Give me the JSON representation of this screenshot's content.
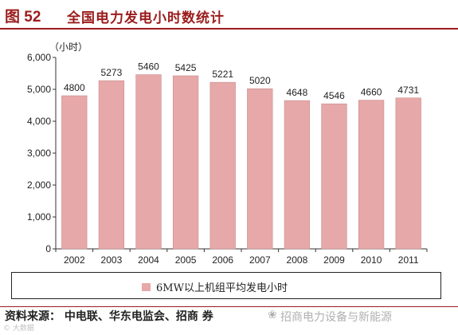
{
  "header": {
    "figure_label": "图 52",
    "figure_title": "全国电力发电小时数统计"
  },
  "chart_data": {
    "type": "bar",
    "unit_label": "（小时）",
    "categories": [
      "2002",
      "2003",
      "2004",
      "2005",
      "2006",
      "2007",
      "2008",
      "2009",
      "2010",
      "2011"
    ],
    "series": [
      {
        "name": "6MW以上机组平均发电小时",
        "values": [
          4800,
          5273,
          5460,
          5425,
          5221,
          5020,
          4648,
          4546,
          4660,
          4731
        ]
      }
    ],
    "data_labels": [
      "4800",
      "5273",
      "5460",
      "5425",
      "5221",
      "5020",
      "4648",
      "4546",
      "4660",
      "4731"
    ],
    "ylim": [
      0,
      6000
    ],
    "yticks": [
      0,
      1000,
      2000,
      3000,
      4000,
      5000,
      6000
    ],
    "ytick_labels": [
      "0",
      "1,000",
      "2,000",
      "3,000",
      "4,000",
      "5,000",
      "6,000"
    ],
    "legend_position": "bottom",
    "grid": false,
    "bar_color": "#e6a8a8",
    "bar_edge_color": "#c98f8f"
  },
  "legend": {
    "label": "6MW以上机组平均发电小时"
  },
  "footer": {
    "source": "资料来源：  中电联、华东电监会、招商  券",
    "watermark": "招商电力设备与新能源",
    "corner_mark": "© 大数据"
  },
  "colors": {
    "accent": "#9b1c1c",
    "bar": "#e6a8a8"
  }
}
